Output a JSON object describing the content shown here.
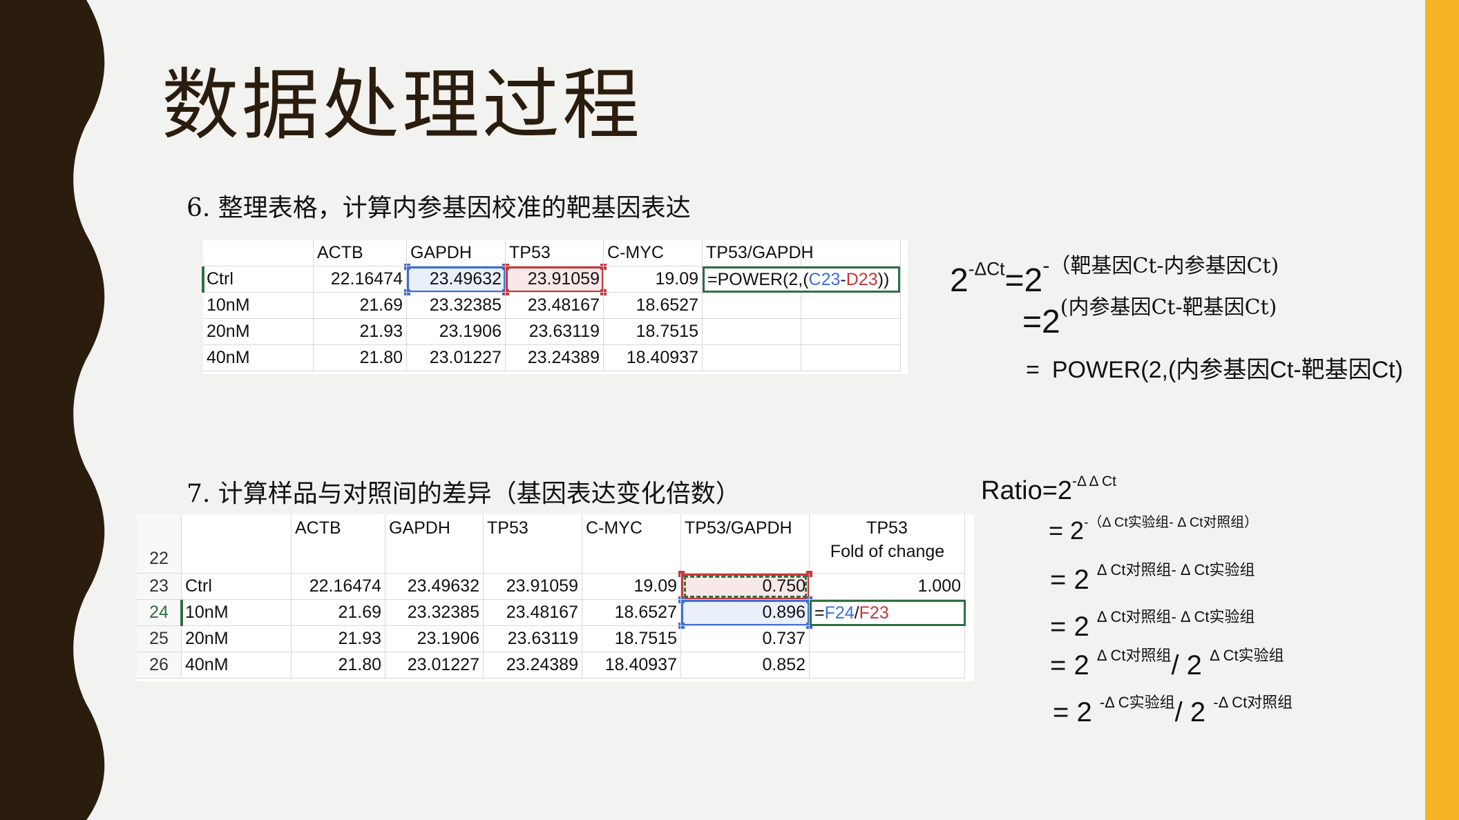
{
  "title": "数据处理过程",
  "step6": {
    "heading": "6. 整理表格，计算内参基因校准的靶基因表达",
    "headers": [
      "",
      "ACTB",
      "GAPDH",
      "TP53",
      "C-MYC",
      "TP53/GAPDH"
    ],
    "rows": [
      [
        "Ctrl",
        "22.16474",
        "23.49632",
        "23.91059",
        "19.09"
      ],
      [
        "10nM",
        "21.69",
        "23.32385",
        "23.48167",
        "18.6527"
      ],
      [
        "20nM",
        "21.93",
        "23.1906",
        "23.63119",
        "18.7515"
      ],
      [
        "40nM",
        "21.80",
        "23.01227",
        "23.24389",
        "18.40937"
      ]
    ],
    "formula": {
      "prefix": "=POWER(2,(",
      "ref1": "C23",
      "minus": "-",
      "ref2": "D23",
      "suffix": "))"
    }
  },
  "formula6": {
    "l1_base": "2",
    "l1_sup": "-ΔCt",
    "l1_eq": "=2",
    "l1_sup2": "-（靶基因Ct-内参基因Ct)",
    "l2_eq": "=2",
    "l2_sup": "(内参基因Ct-靶基因Ct)",
    "l3_eq": "=",
    "l3": "POWER(2,(内参基因Ct-靶基因Ct)"
  },
  "step7": {
    "heading": "7. 计算样品与对照间的差异（基因表达变化倍数）",
    "row_numbers": [
      "22",
      "23",
      "24",
      "25",
      "26"
    ],
    "headers": [
      "",
      "ACTB",
      "GAPDH",
      "TP53",
      "C-MYC",
      "TP53/GAPDH",
      "TP53"
    ],
    "header2": "Fold of change",
    "rows": [
      [
        "Ctrl",
        "22.16474",
        "23.49632",
        "23.91059",
        "19.09",
        "0.750",
        "1.000"
      ],
      [
        "10nM",
        "21.69",
        "23.32385",
        "23.48167",
        "18.6527",
        "0.896",
        ""
      ],
      [
        "20nM",
        "21.93",
        "23.1906",
        "23.63119",
        "18.7515",
        "0.737",
        ""
      ],
      [
        "40nM",
        "21.80",
        "23.01227",
        "23.24389",
        "18.40937",
        "0.852",
        ""
      ]
    ],
    "formula": {
      "eq": "=",
      "ref1": "F24",
      "slash": "/",
      "ref2": "F23"
    }
  },
  "formula7": {
    "l1": "Ratio=2",
    "l1_sup": "-Δ Δ Ct",
    "l2_eq": "= 2",
    "l2_sup": "-（Δ Ct实验组- Δ Ct对照组）",
    "l3_eq": "= 2",
    "l3_sup": "Δ Ct对照组- Δ Ct实验组",
    "l4_eq": "= 2",
    "l4_sup": "Δ Ct对照组- Δ Ct实验组",
    "l5_eq": "= 2",
    "l5_sup": "Δ Ct对照组",
    "l5_mid": "/ 2",
    "l5_sup2": "Δ Ct实验组",
    "l6_eq": "= 2",
    "l6_sup": "-Δ C实验组",
    "l6_mid": "/ 2",
    "l6_sup2": "-Δ Ct对照组"
  },
  "colors": {
    "band": "#2b1d0e",
    "accent": "#f5b325",
    "blue": "#3b6fd6",
    "red": "#c9363c",
    "green": "#2e7040"
  }
}
